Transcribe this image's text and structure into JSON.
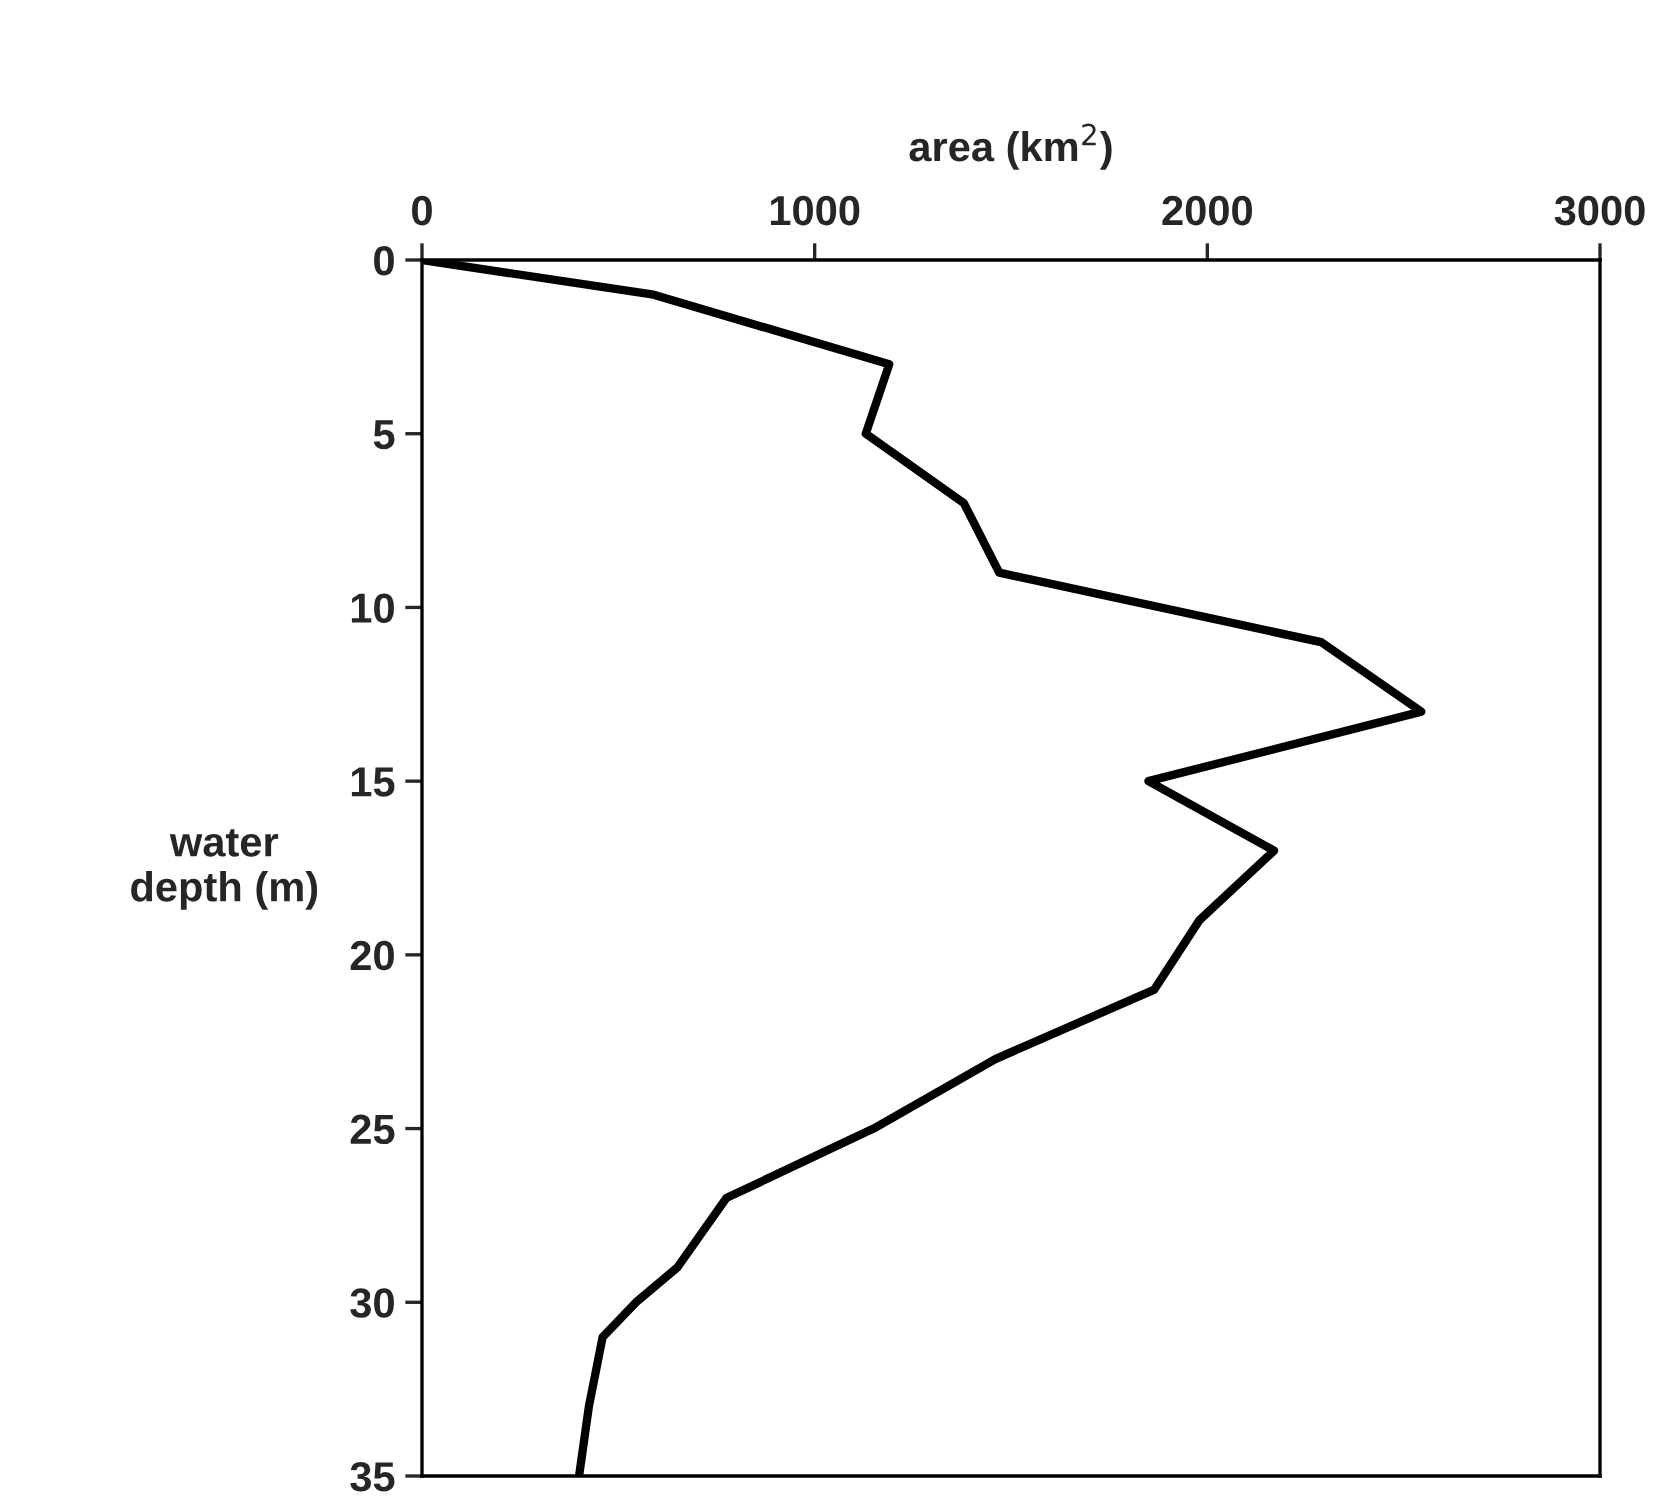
{
  "chart_data": {
    "type": "line",
    "xlabel": "area (km$^{2}$)",
    "ylabel": "water\ndepth (m)",
    "x": [
      0,
      590,
      1190,
      1130,
      1380,
      1470,
      2290,
      2545,
      1850,
      2170,
      1980,
      1865,
      1460,
      1150,
      775,
      650,
      545,
      460,
      425,
      400
    ],
    "series": [
      {
        "color": "#000000",
        "values": [
          0,
          1,
          3,
          5,
          7,
          9,
          11,
          13,
          15,
          17,
          19,
          21,
          23,
          25,
          27,
          29,
          30,
          31,
          33,
          35
        ]
      }
    ],
    "xlim": [
      0,
      3000
    ],
    "xticks": [
      0,
      1000,
      2000,
      3000
    ],
    "ylim": [
      35,
      0
    ],
    "yticks": [
      0,
      5,
      10,
      15,
      20,
      25,
      30,
      35
    ],
    "grid": false,
    "marker": "none",
    "line_style": "solid"
  }
}
